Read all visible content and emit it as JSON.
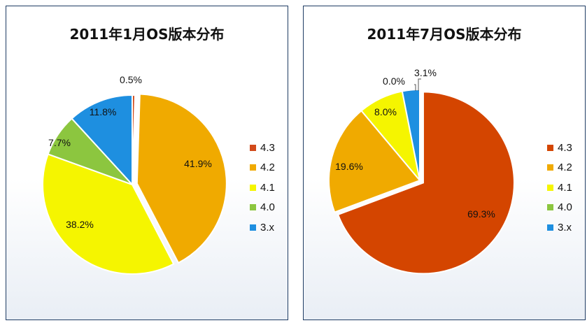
{
  "chart_data": [
    {
      "type": "pie",
      "title": "2011年1月OS版本分布",
      "categories": [
        "4.3",
        "4.2",
        "4.1",
        "4.0",
        "3.x"
      ],
      "values": [
        0.5,
        41.9,
        38.2,
        7.7,
        11.8
      ],
      "labels": [
        "0.5%",
        "41.9%",
        "38.2%",
        "7.7%",
        "11.8%"
      ],
      "colors": [
        "#d24a1b",
        "#f0aa00",
        "#f5f500",
        "#8cc63f",
        "#1e8fe0"
      ],
      "legend": "right",
      "exploded": [
        false,
        true,
        false,
        false,
        false
      ]
    },
    {
      "type": "pie",
      "title": "2011年7月OS版本分布",
      "categories": [
        "4.3",
        "4.2",
        "4.1",
        "4.0",
        "3.x"
      ],
      "values": [
        69.3,
        19.6,
        8.0,
        0.0,
        3.1
      ],
      "labels": [
        "69.3%",
        "19.6%",
        "8.0%",
        "0.0%",
        "3.1%"
      ],
      "colors": [
        "#d44500",
        "#f0aa00",
        "#f5f500",
        "#8cc63f",
        "#1e8fe0"
      ],
      "legend": "right",
      "exploded": [
        true,
        false,
        false,
        false,
        false
      ]
    }
  ]
}
